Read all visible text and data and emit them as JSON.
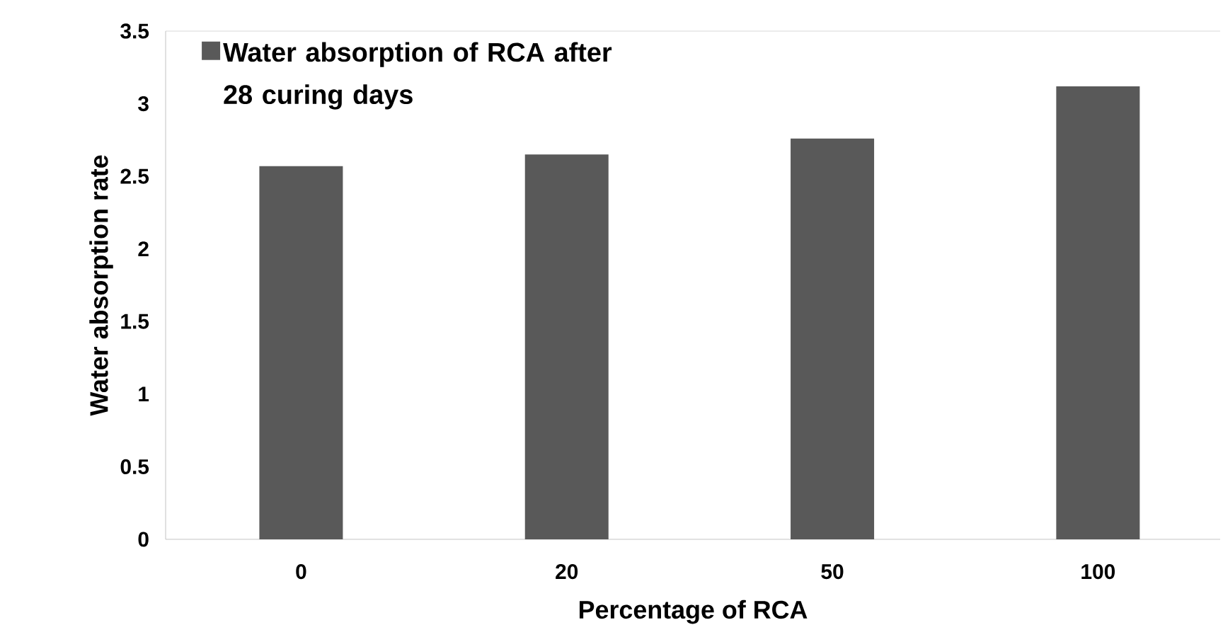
{
  "chart_data": {
    "type": "bar",
    "xlabel": "Percentage of RCA",
    "ylabel": "Water absorption rate",
    "categories": [
      "0",
      "20",
      "50",
      "100"
    ],
    "series": [
      {
        "name": "Water absorption of RCA after 28 curing days",
        "color": "#595959",
        "values": [
          2.57,
          2.65,
          2.76,
          3.12
        ]
      }
    ],
    "ylim": [
      0,
      3.5
    ],
    "yticks": [
      0,
      0.5,
      1,
      1.5,
      2,
      2.5,
      3,
      3.5
    ],
    "grid": false,
    "legend": "top left"
  }
}
